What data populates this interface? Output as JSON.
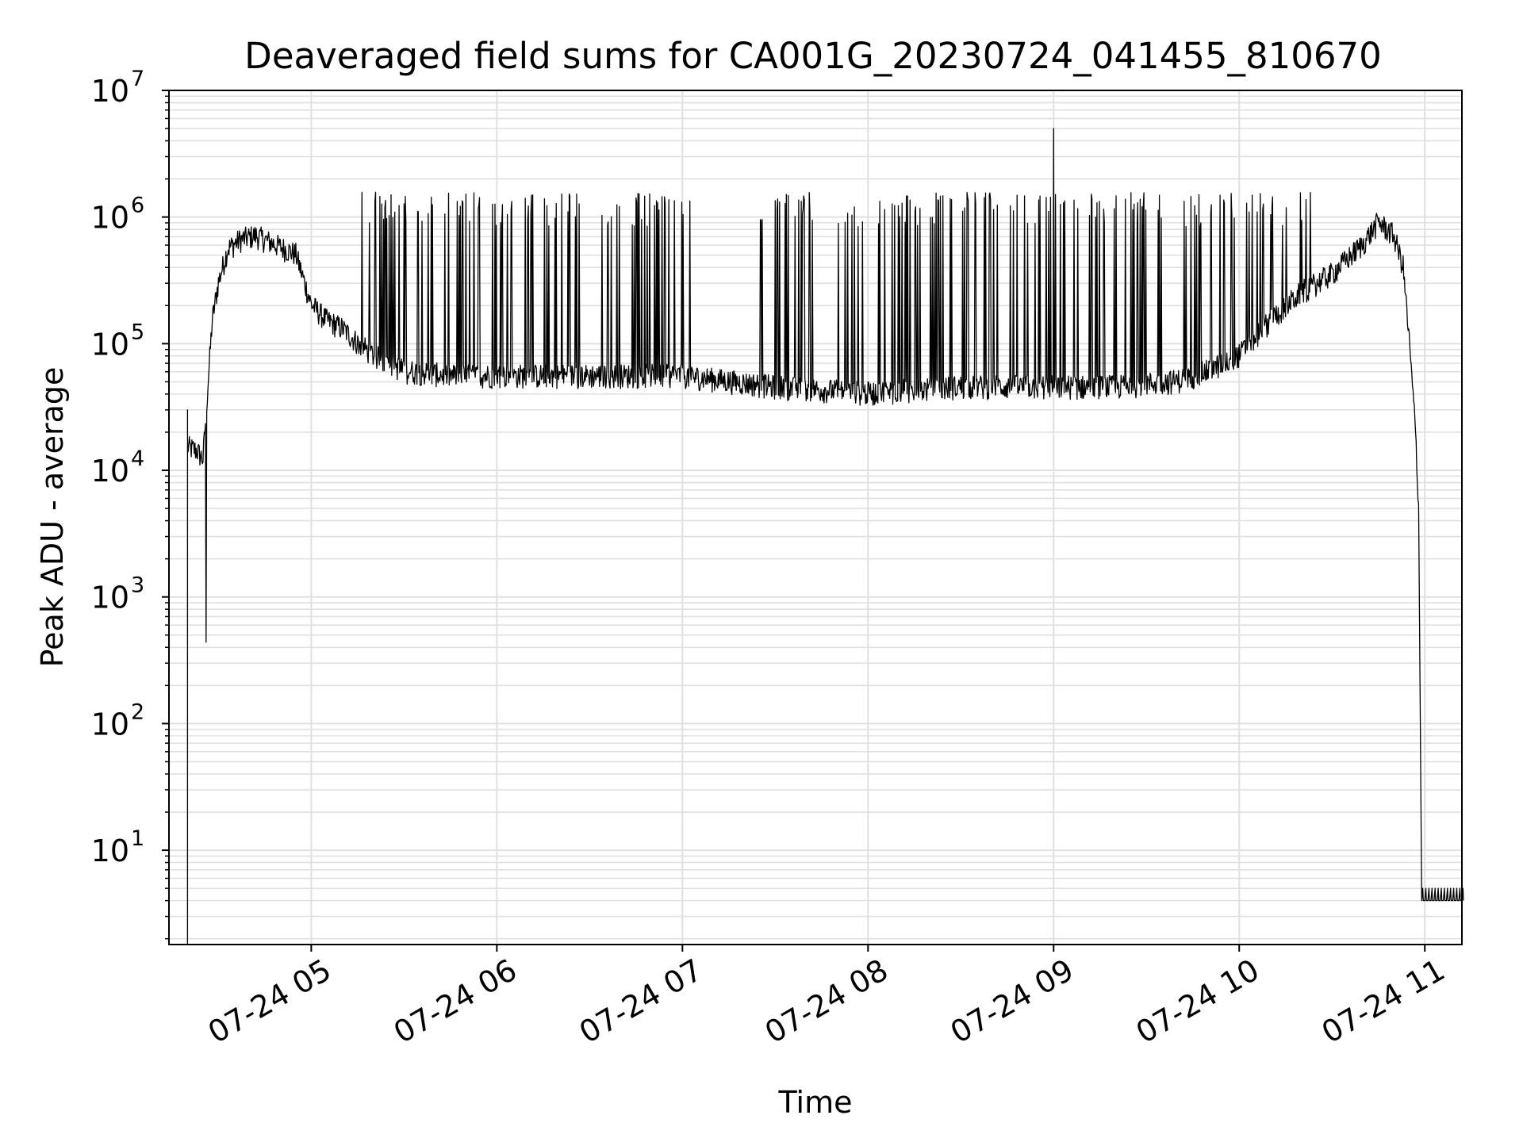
{
  "chart_data": {
    "type": "line",
    "title": "Deaveraged field sums for CA001G_20230724_041455_810670",
    "xlabel": "Time",
    "ylabel": "Peak ADU - average",
    "y_scale": "log",
    "ylim": [
      1.8,
      10000000
    ],
    "xlim": [
      "2023-07-24 04:14",
      "2023-07-24 11:12"
    ],
    "x_tick_labels": [
      "07-24 05",
      "07-24 06",
      "07-24 07",
      "07-24 08",
      "07-24 09",
      "07-24 10",
      "07-24 11"
    ],
    "x_ticks": [
      "2023-07-24 05:00",
      "2023-07-24 06:00",
      "2023-07-24 07:00",
      "2023-07-24 08:00",
      "2023-07-24 09:00",
      "2023-07-24 10:00",
      "2023-07-24 11:00"
    ],
    "y_tick_labels": [
      {
        "base": "10",
        "exp": "1"
      },
      {
        "base": "10",
        "exp": "2"
      },
      {
        "base": "10",
        "exp": "3"
      },
      {
        "base": "10",
        "exp": "4"
      },
      {
        "base": "10",
        "exp": "5"
      },
      {
        "base": "10",
        "exp": "6"
      },
      {
        "base": "10",
        "exp": "7"
      }
    ],
    "y_ticks": [
      10,
      100,
      1000,
      10000,
      100000,
      1000000,
      10000000
    ],
    "grid": true,
    "grid_minor": true,
    "line_color": "#000000",
    "grid_color": "#e0e0e0",
    "series": [
      {
        "baseline": [
          [
            "2023-07-24 04:20",
            15000
          ],
          [
            "2023-07-24 04:23",
            14000
          ],
          [
            "2023-07-24 04:25",
            12000
          ],
          [
            "2023-07-24 04:28",
            150000
          ],
          [
            "2023-07-24 04:30",
            300000
          ],
          [
            "2023-07-24 04:33",
            550000
          ],
          [
            "2023-07-24 04:37",
            650000
          ],
          [
            "2023-07-24 04:42",
            700000
          ],
          [
            "2023-07-24 04:48",
            600000
          ],
          [
            "2023-07-24 04:55",
            500000
          ],
          [
            "2023-07-24 05:00",
            200000
          ],
          [
            "2023-07-24 05:05",
            150000
          ],
          [
            "2023-07-24 05:10",
            130000
          ],
          [
            "2023-07-24 05:15",
            100000
          ],
          [
            "2023-07-24 05:20",
            80000
          ],
          [
            "2023-07-24 05:30",
            60000
          ],
          [
            "2023-07-24 05:45",
            55000
          ],
          [
            "2023-07-24 06:00",
            55000
          ],
          [
            "2023-07-24 06:30",
            55000
          ],
          [
            "2023-07-24 07:00",
            55000
          ],
          [
            "2023-07-24 07:30",
            45000
          ],
          [
            "2023-07-24 08:00",
            40000
          ],
          [
            "2023-07-24 08:30",
            45000
          ],
          [
            "2023-07-24 09:00",
            45000
          ],
          [
            "2023-07-24 09:20",
            45000
          ],
          [
            "2023-07-24 09:40",
            50000
          ],
          [
            "2023-07-24 09:50",
            60000
          ],
          [
            "2023-07-24 10:00",
            80000
          ],
          [
            "2023-07-24 10:10",
            150000
          ],
          [
            "2023-07-24 10:20",
            250000
          ],
          [
            "2023-07-24 10:30",
            350000
          ],
          [
            "2023-07-24 10:40",
            600000
          ],
          [
            "2023-07-24 10:45",
            900000
          ],
          [
            "2023-07-24 10:50",
            700000
          ],
          [
            "2023-07-24 10:53",
            400000
          ],
          [
            "2023-07-24 10:55",
            100000
          ],
          [
            "2023-07-24 10:57",
            20000
          ],
          [
            "2023-07-24 10:58",
            5000
          ]
        ],
        "spike_peak": 1500000,
        "spike_windows": [
          [
            "2023-07-24 05:15",
            "2023-07-24 07:05"
          ],
          [
            "2023-07-24 07:25",
            "2023-07-24 07:42"
          ],
          [
            "2023-07-24 07:50",
            "2023-07-24 10:25"
          ]
        ],
        "features": [
          {
            "label": "start drop",
            "x": "2023-07-24 04:20",
            "y": 1.8
          },
          {
            "label": "dip",
            "x": "2023-07-24 04:26",
            "y": 440
          },
          {
            "label": "max spike",
            "x": "2023-07-24 09:00",
            "y": 5000000
          },
          {
            "label": "floor",
            "x": "2023-07-24 11:00",
            "y": 4
          }
        ],
        "floor_value": 4
      }
    ]
  }
}
